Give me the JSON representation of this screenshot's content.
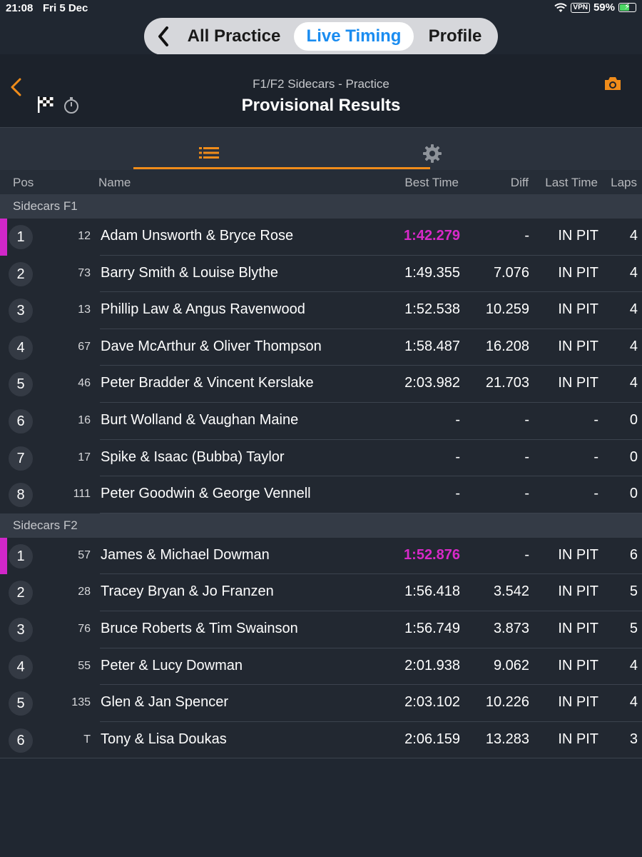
{
  "status_bar": {
    "time": "21:08",
    "date": "Fri 5 Dec",
    "vpn": "VPN",
    "battery": "59%"
  },
  "nav": {
    "back_icon": "chevron-left-icon",
    "segments": [
      "All Practice",
      "Live Timing",
      "Profile"
    ],
    "selected": "Live Timing"
  },
  "header": {
    "subtitle": "F1/F2 Sidecars - Practice",
    "title": "Provisional Results",
    "icons": [
      "chevron-left-icon",
      "checkered-flag-icon",
      "stopwatch-icon",
      "camera-icon"
    ]
  },
  "tabs": {
    "icons": [
      "list-icon",
      "gear-icon"
    ],
    "selected": "list-icon"
  },
  "columns": {
    "pos": "Pos",
    "name": "Name",
    "best": "Best Time",
    "diff": "Diff",
    "last": "Last Time",
    "laps": "Laps"
  },
  "colors": {
    "accent": "#f08c1a",
    "fastest": "#d829c9",
    "selected_segment": "#1a8cf0"
  },
  "sections": [
    {
      "label": "Sidecars F1",
      "rows": [
        {
          "pos": "1",
          "num": "12",
          "name": "Adam Unsworth & Bryce Rose",
          "best": "1:42.279",
          "diff": "-",
          "last": "IN PIT",
          "laps": "4",
          "fastest": true
        },
        {
          "pos": "2",
          "num": "73",
          "name": "Barry Smith & Louise Blythe",
          "best": "1:49.355",
          "diff": "7.076",
          "last": "IN PIT",
          "laps": "4"
        },
        {
          "pos": "3",
          "num": "13",
          "name": "Phillip Law & Angus Ravenwood",
          "best": "1:52.538",
          "diff": "10.259",
          "last": "IN PIT",
          "laps": "4"
        },
        {
          "pos": "4",
          "num": "67",
          "name": "Dave McArthur & Oliver Thompson",
          "best": "1:58.487",
          "diff": "16.208",
          "last": "IN PIT",
          "laps": "4"
        },
        {
          "pos": "5",
          "num": "46",
          "name": "Peter Bradder & Vincent Kerslake",
          "best": "2:03.982",
          "diff": "21.703",
          "last": "IN PIT",
          "laps": "4"
        },
        {
          "pos": "6",
          "num": "16",
          "name": "Burt Wolland & Vaughan Maine",
          "best": "-",
          "diff": "-",
          "last": "-",
          "laps": "0"
        },
        {
          "pos": "7",
          "num": "17",
          "name": "Spike & Isaac (Bubba) Taylor",
          "best": "-",
          "diff": "-",
          "last": "-",
          "laps": "0"
        },
        {
          "pos": "8",
          "num": "111",
          "name": "Peter Goodwin & George Vennell",
          "best": "-",
          "diff": "-",
          "last": "-",
          "laps": "0"
        }
      ]
    },
    {
      "label": "Sidecars F2",
      "rows": [
        {
          "pos": "1",
          "num": "57",
          "name": "James & Michael Dowman",
          "best": "1:52.876",
          "diff": "-",
          "last": "IN PIT",
          "laps": "6",
          "fastest": true
        },
        {
          "pos": "2",
          "num": "28",
          "name": "Tracey Bryan & Jo Franzen",
          "best": "1:56.418",
          "diff": "3.542",
          "last": "IN PIT",
          "laps": "5"
        },
        {
          "pos": "3",
          "num": "76",
          "name": "Bruce Roberts & Tim Swainson",
          "best": "1:56.749",
          "diff": "3.873",
          "last": "IN PIT",
          "laps": "5"
        },
        {
          "pos": "4",
          "num": "55",
          "name": "Peter & Lucy Dowman",
          "best": "2:01.938",
          "diff": "9.062",
          "last": "IN PIT",
          "laps": "4"
        },
        {
          "pos": "5",
          "num": "135",
          "name": "Glen & Jan Spencer",
          "best": "2:03.102",
          "diff": "10.226",
          "last": "IN PIT",
          "laps": "4"
        },
        {
          "pos": "6",
          "num": "T",
          "name": "Tony & Lisa Doukas",
          "best": "2:06.159",
          "diff": "13.283",
          "last": "IN PIT",
          "laps": "3"
        }
      ]
    }
  ]
}
